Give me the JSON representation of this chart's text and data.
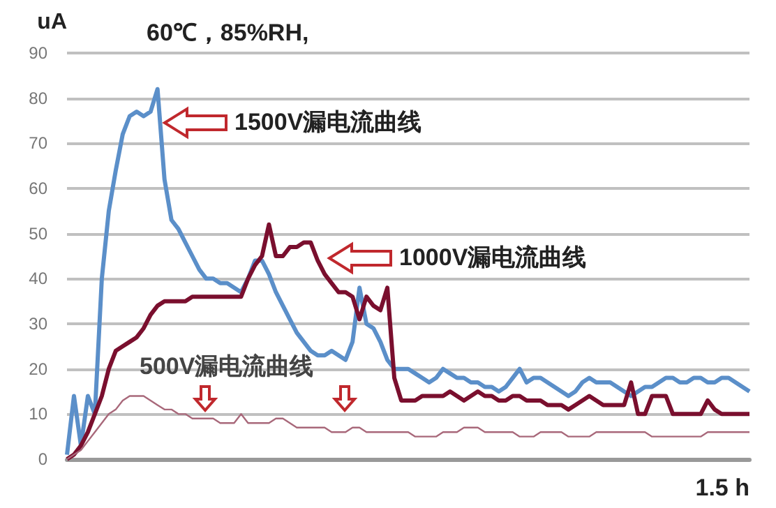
{
  "chart_data": {
    "type": "line",
    "title": "60℃，85%RH,",
    "xlabel": "1.5 h",
    "ylabel": "uA",
    "annotations": [
      "1500V漏电流曲线",
      "1000V漏电流曲线",
      "500V漏电流曲线"
    ],
    "categories": [
      null,
      null,
      null,
      null,
      null,
      null,
      null,
      null,
      null,
      null,
      null,
      null,
      null,
      null,
      null,
      null,
      null,
      null,
      null,
      null,
      null,
      null,
      null,
      null,
      null,
      null,
      null,
      null,
      null,
      null,
      null,
      null,
      null,
      null,
      null,
      null,
      null,
      null,
      null,
      null,
      null,
      null,
      null,
      null,
      null,
      null,
      null,
      null,
      null,
      null,
      null,
      null,
      null,
      null,
      null,
      null,
      null,
      null,
      null,
      null,
      null,
      null,
      null,
      null,
      null,
      null,
      null,
      null,
      null,
      null,
      null,
      null,
      null,
      null,
      null,
      null,
      null,
      null,
      null,
      null,
      null,
      null,
      null,
      null,
      null,
      null,
      null,
      null,
      null,
      null,
      null,
      null,
      null,
      null,
      null,
      null,
      null,
      null,
      null
    ],
    "ylim": [
      0,
      90
    ],
    "yticks": [
      0,
      10,
      20,
      30,
      40,
      50,
      60,
      70,
      80,
      90
    ],
    "grid": "y",
    "tick_labels": "y",
    "series": [
      {
        "color": "#5b8fc9",
        "values": [
          1,
          14,
          3,
          14,
          10,
          40,
          55,
          64,
          72,
          76,
          77,
          76,
          77,
          82,
          62,
          53,
          51,
          48,
          45,
          42,
          40,
          40,
          39,
          39,
          38,
          37,
          40,
          44,
          44,
          41,
          37,
          34,
          31,
          28,
          26,
          24,
          23,
          23,
          24,
          23,
          22,
          26,
          38,
          30,
          29,
          26,
          22,
          20,
          20,
          20,
          19,
          18,
          17,
          18,
          20,
          19,
          18,
          18,
          17,
          17,
          16,
          16,
          15,
          16,
          18,
          20,
          17,
          18,
          18,
          17,
          16,
          15,
          14,
          15,
          17,
          18,
          17,
          17,
          17,
          16,
          15,
          14,
          15,
          16,
          16,
          17,
          18,
          18,
          17,
          17,
          18,
          18,
          17,
          17,
          18,
          18,
          17,
          16,
          15
        ]
      },
      {
        "color": "#7a0f2e",
        "values": [
          0,
          1,
          3,
          6,
          10,
          14,
          20,
          24,
          25,
          26,
          27,
          29,
          32,
          34,
          35,
          35,
          35,
          35,
          36,
          36,
          36,
          36,
          36,
          36,
          36,
          36,
          40,
          43,
          45,
          52,
          45,
          45,
          47,
          47,
          48,
          48,
          44,
          41,
          39,
          37,
          37,
          36,
          31,
          36,
          34,
          33,
          38,
          18,
          13,
          13,
          13,
          14,
          14,
          14,
          14,
          15,
          14,
          13,
          14,
          15,
          14,
          14,
          13,
          13,
          14,
          14,
          13,
          13,
          13,
          12,
          12,
          12,
          11,
          12,
          13,
          14,
          13,
          12,
          12,
          12,
          12,
          17,
          10,
          10,
          14,
          14,
          14,
          10,
          10,
          10,
          10,
          10,
          13,
          11,
          10,
          10,
          10,
          10,
          10
        ]
      },
      {
        "color": "#a8687a",
        "values": [
          0,
          1,
          2,
          4,
          6,
          8,
          10,
          11,
          13,
          14,
          14,
          14,
          13,
          12,
          11,
          11,
          10,
          10,
          9,
          9,
          9,
          9,
          8,
          8,
          8,
          10,
          8,
          8,
          8,
          8,
          9,
          9,
          8,
          7,
          7,
          7,
          7,
          7,
          6,
          6,
          6,
          7,
          7,
          6,
          6,
          6,
          6,
          6,
          6,
          6,
          5,
          5,
          5,
          5,
          6,
          6,
          6,
          7,
          7,
          7,
          6,
          6,
          6,
          6,
          6,
          5,
          5,
          5,
          6,
          6,
          6,
          6,
          5,
          5,
          5,
          5,
          6,
          6,
          6,
          6,
          6,
          6,
          6,
          6,
          5,
          5,
          5,
          5,
          5,
          5,
          5,
          5,
          6,
          6,
          6,
          6,
          6,
          6,
          6
        ]
      }
    ]
  }
}
